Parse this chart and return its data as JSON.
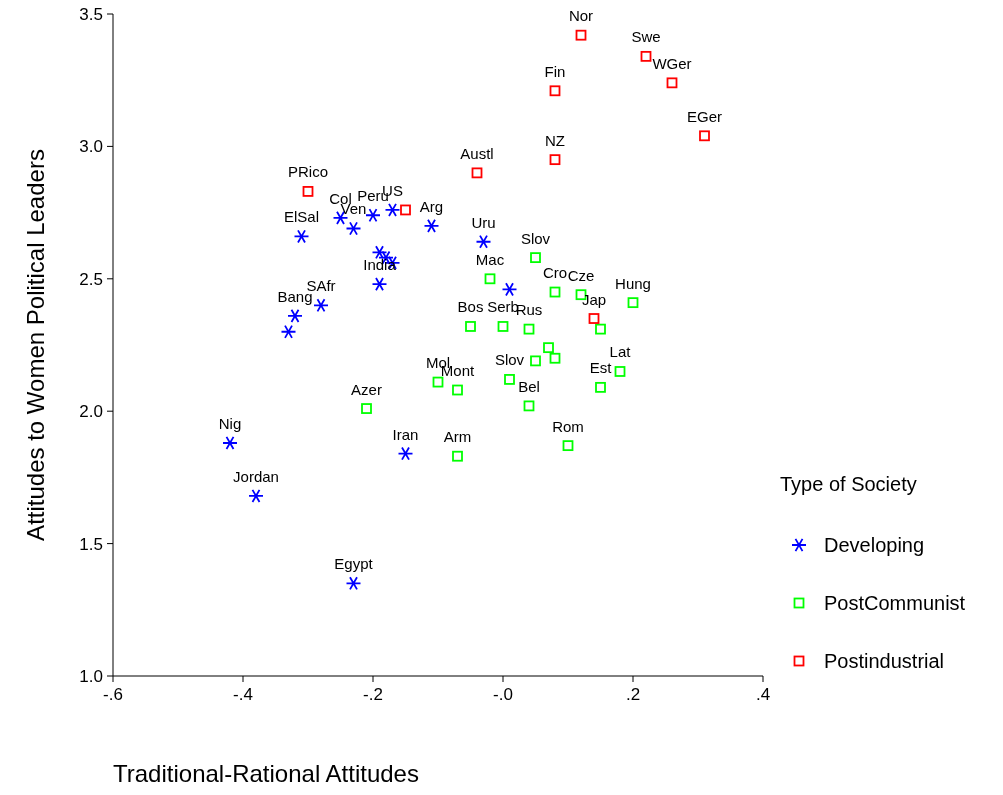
{
  "chart_data": {
    "type": "scatter",
    "xlabel": "Traditional-Rational Attitudes",
    "ylabel": "Attitudes to Women Political Leaders",
    "legend_title": "Type of Society",
    "legend": "right",
    "grid": false,
    "xlim": [
      -0.6,
      0.4
    ],
    "xticks": [
      {
        "value": -0.6,
        "label": "-.6"
      },
      {
        "value": -0.4,
        "label": "-.4"
      },
      {
        "value": -0.2,
        "label": "-.2"
      },
      {
        "value": 0,
        "label": "-.0"
      },
      {
        "value": 0.2,
        "label": ".2"
      },
      {
        "value": 0.4,
        "label": ".4"
      }
    ],
    "ylim": [
      1.0,
      3.5
    ],
    "yticks": [
      {
        "value": 1,
        "label": "1.0"
      },
      {
        "value": 1.5,
        "label": "1.5"
      },
      {
        "value": 2,
        "label": "2.0"
      },
      {
        "value": 2.5,
        "label": "2.5"
      },
      {
        "value": 3,
        "label": "3.0"
      },
      {
        "value": 3.5,
        "label": "3.5"
      }
    ],
    "series": [
      {
        "name": "Developing",
        "color": "#0000ff",
        "marker": "cross",
        "x": [
          -0.31,
          -0.25,
          -0.23,
          -0.2,
          -0.17,
          -0.11,
          -0.03,
          -0.19,
          -0.18,
          -0.17,
          -0.19,
          0.01,
          -0.28,
          -0.32,
          -0.33,
          -0.42,
          -0.38,
          -0.15,
          -0.23
        ],
        "values": [
          2.66,
          2.73,
          2.69,
          2.74,
          2.76,
          2.7,
          2.64,
          2.6,
          2.58,
          2.56,
          2.48,
          2.46,
          2.4,
          2.36,
          2.3,
          1.88,
          1.68,
          1.84,
          1.35
        ]
      },
      {
        "name": "PostCommunist",
        "color": "#00ff00",
        "marker": "square",
        "x": [
          0.05,
          -0.02,
          0.08,
          0.12,
          0.2,
          -0.05,
          0.0,
          0.04,
          0.15,
          0.07,
          0.08,
          0.05,
          0.18,
          0.15,
          0.01,
          0.04,
          0.1,
          -0.07,
          -0.1,
          -0.21,
          -0.07
        ],
        "values": [
          2.58,
          2.5,
          2.45,
          2.44,
          2.41,
          2.32,
          2.32,
          2.31,
          2.31,
          2.24,
          2.2,
          2.19,
          2.15,
          2.09,
          2.12,
          2.02,
          1.87,
          2.08,
          2.11,
          2.01,
          1.83
        ]
      },
      {
        "name": "Postindustrial",
        "color": "#ff0000",
        "marker": "square",
        "x": [
          0.12,
          0.22,
          0.26,
          0.08,
          0.31,
          0.08,
          -0.04,
          -0.3,
          -0.15,
          0.14
        ],
        "values": [
          3.42,
          3.34,
          3.24,
          3.21,
          3.04,
          2.95,
          2.9,
          2.83,
          2.76,
          2.35
        ]
      }
    ],
    "annotations": [
      {
        "text": "ElSal",
        "x": -0.31,
        "y": 2.66
      },
      {
        "text": "Col",
        "x": -0.25,
        "y": 2.73
      },
      {
        "text": "Ven",
        "x": -0.23,
        "y": 2.69
      },
      {
        "text": "Peru",
        "x": -0.2,
        "y": 2.74
      },
      {
        "text": "US",
        "x": -0.17,
        "y": 2.76
      },
      {
        "text": "Arg",
        "x": -0.11,
        "y": 2.7
      },
      {
        "text": "Uru",
        "x": -0.03,
        "y": 2.64
      },
      {
        "text": "India",
        "x": -0.19,
        "y": 2.48
      },
      {
        "text": "SAfr",
        "x": -0.28,
        "y": 2.4
      },
      {
        "text": "Bang",
        "x": -0.32,
        "y": 2.36
      },
      {
        "text": "Nig",
        "x": -0.42,
        "y": 1.88
      },
      {
        "text": "Jordan",
        "x": -0.38,
        "y": 1.68
      },
      {
        "text": "Iran",
        "x": -0.15,
        "y": 1.84
      },
      {
        "text": "Egypt",
        "x": -0.23,
        "y": 1.35
      },
      {
        "text": "Slov",
        "x": 0.05,
        "y": 2.58
      },
      {
        "text": "Mac",
        "x": -0.02,
        "y": 2.5
      },
      {
        "text": "Cro",
        "x": 0.08,
        "y": 2.45
      },
      {
        "text": "Cze",
        "x": 0.12,
        "y": 2.44
      },
      {
        "text": "Hung",
        "x": 0.2,
        "y": 2.41
      },
      {
        "text": "Bos",
        "x": -0.05,
        "y": 2.32
      },
      {
        "text": "Serb",
        "x": 0.0,
        "y": 2.32
      },
      {
        "text": "Rus",
        "x": 0.04,
        "y": 2.31
      },
      {
        "text": "Lat",
        "x": 0.18,
        "y": 2.15
      },
      {
        "text": "Est",
        "x": 0.15,
        "y": 2.09
      },
      {
        "text": "Slov",
        "x": 0.01,
        "y": 2.12
      },
      {
        "text": "Bel",
        "x": 0.04,
        "y": 2.02
      },
      {
        "text": "Rom",
        "x": 0.1,
        "y": 1.87
      },
      {
        "text": "Mont",
        "x": -0.07,
        "y": 2.08
      },
      {
        "text": "Mol",
        "x": -0.1,
        "y": 2.11
      },
      {
        "text": "Azer",
        "x": -0.21,
        "y": 2.01
      },
      {
        "text": "Arm",
        "x": -0.07,
        "y": 1.83
      },
      {
        "text": "Nor",
        "x": 0.12,
        "y": 3.42
      },
      {
        "text": "Swe",
        "x": 0.22,
        "y": 3.34
      },
      {
        "text": "WGer",
        "x": 0.26,
        "y": 3.24
      },
      {
        "text": "Fin",
        "x": 0.08,
        "y": 3.21
      },
      {
        "text": "EGer",
        "x": 0.31,
        "y": 3.04
      },
      {
        "text": "NZ",
        "x": 0.08,
        "y": 2.95
      },
      {
        "text": "Austl",
        "x": -0.04,
        "y": 2.9
      },
      {
        "text": "PRico",
        "x": -0.3,
        "y": 2.83
      },
      {
        "text": "Jap",
        "x": 0.14,
        "y": 2.35
      }
    ]
  }
}
